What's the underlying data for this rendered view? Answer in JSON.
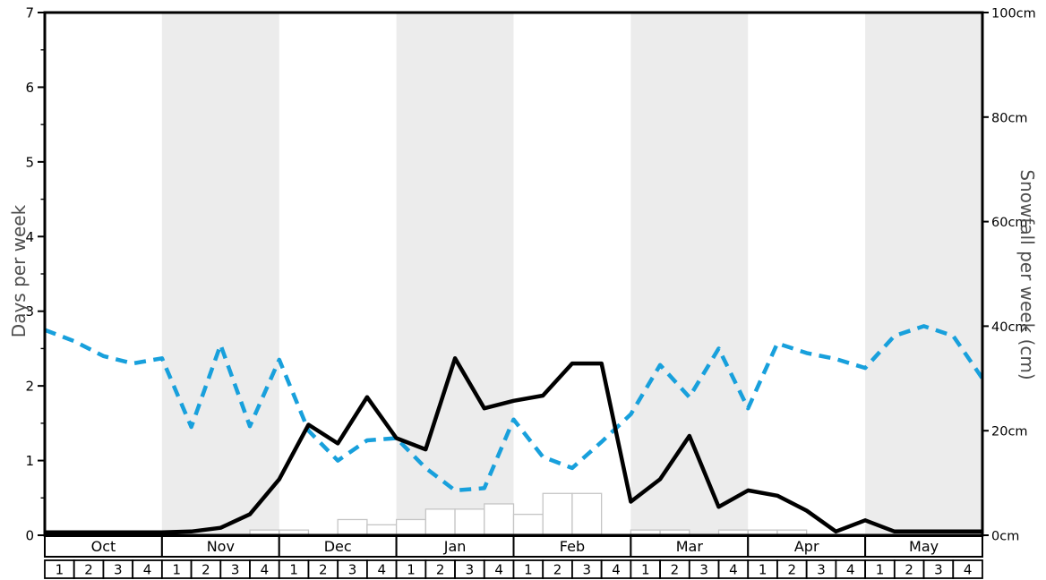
{
  "chart_data": {
    "type": "line+bar",
    "title": "",
    "x_axis": {
      "months": [
        {
          "label": "Oct",
          "weeks": [
            "1",
            "2",
            "3",
            "4"
          ]
        },
        {
          "label": "Nov",
          "weeks": [
            "1",
            "2",
            "3",
            "4"
          ]
        },
        {
          "label": "Dec",
          "weeks": [
            "1",
            "2",
            "3",
            "4"
          ]
        },
        {
          "label": "Jan",
          "weeks": [
            "1",
            "2",
            "3",
            "4"
          ]
        },
        {
          "label": "Feb",
          "weeks": [
            "1",
            "2",
            "3",
            "4"
          ]
        },
        {
          "label": "Mar",
          "weeks": [
            "1",
            "2",
            "3",
            "4"
          ]
        },
        {
          "label": "Apr",
          "weeks": [
            "1",
            "2",
            "3",
            "4"
          ]
        },
        {
          "label": "May",
          "weeks": [
            "1",
            "2",
            "3",
            "4"
          ]
        }
      ]
    },
    "y_left": {
      "label": "Days per week",
      "range": [
        0,
        7
      ],
      "major_ticks": [
        0,
        1,
        2,
        3,
        4,
        5,
        6,
        7
      ],
      "minor_tick_step": 0.5
    },
    "y_right": {
      "label": "Snowfall per week (cm)",
      "range": [
        0,
        100
      ],
      "ticks": [
        {
          "value": 0,
          "label": "0cm"
        },
        {
          "value": 20,
          "label": "20cm"
        },
        {
          "value": 40,
          "label": "40cm"
        },
        {
          "value": 60,
          "label": "60cm"
        },
        {
          "value": 80,
          "label": "80cm"
        },
        {
          "value": 100,
          "label": "100cm"
        }
      ]
    },
    "shaded_months": [
      "Nov",
      "Jan",
      "Mar",
      "May"
    ],
    "legend": "none",
    "series": [
      {
        "id": "blue-dashed-line",
        "kind": "line",
        "axis": "left",
        "color": "#18a0dc",
        "dash": true,
        "start_at_axis": 2.75,
        "weekly_values": [
          2.6,
          2.4,
          2.3,
          2.37,
          1.45,
          2.55,
          1.46,
          2.35,
          1.4,
          1.0,
          1.27,
          1.3,
          0.9,
          0.6,
          0.63,
          1.55,
          1.05,
          0.9,
          1.25,
          1.62,
          2.28,
          1.85,
          2.5,
          1.7,
          2.57,
          2.44,
          2.36,
          2.24,
          2.67,
          2.8,
          2.67,
          2.1
        ]
      },
      {
        "id": "black-solid-line",
        "kind": "line",
        "axis": "left",
        "color": "#000000",
        "dash": false,
        "start_at_axis": 0.04,
        "weekly_values": [
          0.04,
          0.04,
          0.04,
          0.04,
          0.05,
          0.1,
          0.28,
          0.75,
          1.48,
          1.23,
          1.85,
          1.3,
          1.15,
          2.37,
          1.7,
          1.8,
          1.87,
          2.3,
          2.3,
          0.45,
          0.75,
          1.33,
          0.38,
          0.6,
          0.53,
          0.33,
          0.05,
          0.2,
          0.05,
          0.05,
          0.05,
          0.05
        ]
      },
      {
        "id": "snowfall-bars",
        "kind": "bar",
        "axis": "right",
        "unit": "cm",
        "fill": "#ffffff",
        "border": "#c5c5c5",
        "weekly_values": [
          0,
          0,
          0,
          0,
          0,
          0,
          0,
          1,
          1,
          0,
          3,
          2,
          3,
          5,
          5,
          6,
          4,
          8,
          8,
          0,
          1,
          1,
          0,
          1,
          1,
          1,
          0,
          0,
          0,
          0,
          0,
          0
        ]
      }
    ],
    "colors": {
      "band": "#ececec",
      "axis_title": "#4d4d4d",
      "frame": "#000000",
      "table_border": "#000000",
      "table_fill": "#ffffff"
    }
  }
}
